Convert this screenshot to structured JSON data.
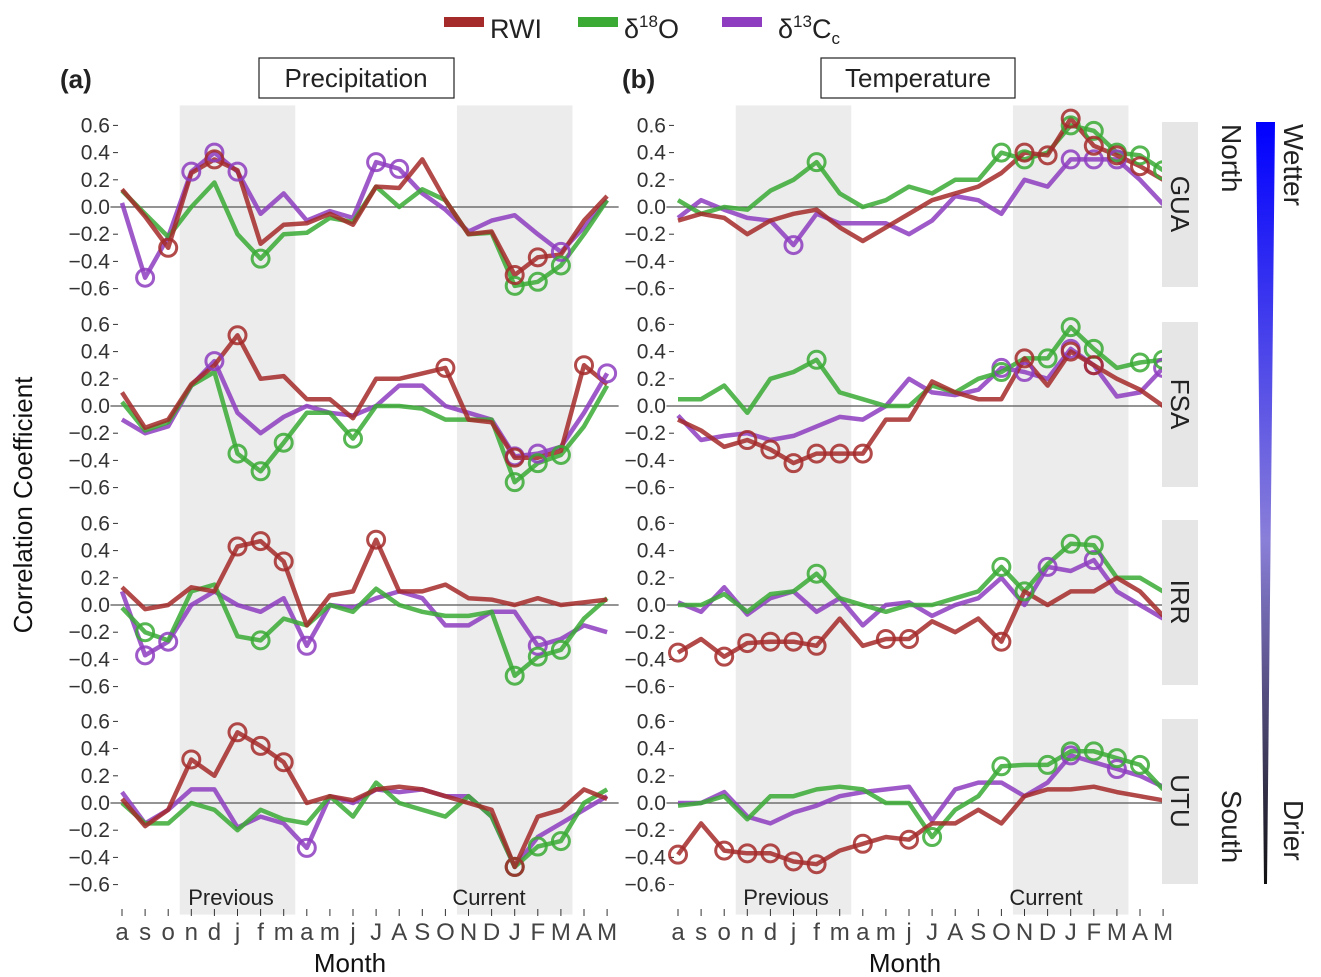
{
  "colors": {
    "RWI": "#a52a2a",
    "d18O": "#3aaa35",
    "d13C": "#8e3dc0",
    "north": "#1a1adb",
    "south": "#b5462a",
    "shade": "#ececec",
    "strip": "#e6e6e6"
  },
  "legend": {
    "rwi": "RWI",
    "d18o_base": "δ",
    "d18o_sup": "18",
    "d18o_tail": "O",
    "d13c_base": "δ",
    "d13c_sup": "13",
    "d13c_tail": "C",
    "d13c_sub": "c"
  },
  "panels": {
    "a_letter": "(a)",
    "a_title": "Precipitation",
    "b_letter": "(b)",
    "b_title": "Temperature"
  },
  "axes": {
    "ylabel": "Correlation Coefficient",
    "xlabel": "Month",
    "yticks": [
      "0.6",
      "0.4",
      "0.2",
      "0.0",
      "−0.2",
      "−0.4",
      "−0.6"
    ]
  },
  "shading": {
    "previous": "Previous",
    "current": "Current"
  },
  "gradient": {
    "north": "North",
    "south": "South",
    "wetter": "Wetter",
    "drier": "Drier"
  },
  "chart_data": {
    "type": "line",
    "categories": [
      "a",
      "s",
      "o",
      "n",
      "d",
      "j",
      "f",
      "m",
      "a",
      "m",
      "j",
      "J",
      "A",
      "S",
      "O",
      "N",
      "D",
      "J",
      "F",
      "M",
      "A",
      "M"
    ],
    "ylim": [
      -0.6,
      0.6
    ],
    "yticks": [
      0.6,
      0.4,
      0.2,
      0.0,
      -0.2,
      -0.4,
      -0.6
    ],
    "shaded_ranges": [
      {
        "label": "Previous",
        "from": 3,
        "to": 7
      },
      {
        "label": "Current",
        "from": 15,
        "to": 19
      }
    ],
    "legend_placement": "top",
    "sites": [
      "GUA",
      "FSA",
      "IRR",
      "UTU"
    ],
    "facets": {
      "Precipitation": {
        "GUA": {
          "RWI": {
            "values": [
              0.13,
              -0.07,
              -0.3,
              0.25,
              0.35,
              0.27,
              -0.27,
              -0.13,
              -0.12,
              -0.05,
              -0.13,
              0.15,
              0.14,
              0.35,
              0.05,
              -0.2,
              -0.18,
              -0.5,
              -0.37,
              -0.35,
              -0.1,
              0.08
            ],
            "sig": [
              2,
              4,
              17,
              18
            ]
          },
          "d18O": {
            "values": [
              0.12,
              -0.05,
              -0.22,
              0.0,
              0.18,
              -0.2,
              -0.38,
              -0.2,
              -0.19,
              -0.08,
              -0.11,
              0.15,
              0.0,
              0.13,
              0.05,
              -0.2,
              -0.19,
              -0.58,
              -0.55,
              -0.43,
              -0.2,
              0.05
            ],
            "sig": [
              6,
              17,
              18,
              19
            ]
          },
          "d13C": {
            "values": [
              0.03,
              -0.52,
              -0.22,
              0.26,
              0.4,
              0.26,
              -0.05,
              0.1,
              -0.1,
              -0.03,
              -0.08,
              0.33,
              0.28,
              0.1,
              -0.02,
              -0.18,
              -0.1,
              -0.06,
              -0.2,
              -0.33,
              -0.15,
              0.05
            ],
            "sig": [
              1,
              3,
              4,
              5,
              11,
              12,
              19
            ]
          }
        },
        "FSA": {
          "RWI": {
            "values": [
              0.1,
              -0.16,
              -0.1,
              0.16,
              0.3,
              0.52,
              0.2,
              0.22,
              0.05,
              0.05,
              -0.09,
              0.2,
              0.2,
              0.24,
              0.28,
              -0.1,
              -0.12,
              -0.38,
              -0.38,
              -0.33,
              0.3,
              0.16
            ],
            "sig": [
              5,
              14,
              17,
              20
            ]
          },
          "d18O": {
            "values": [
              0.03,
              -0.18,
              -0.12,
              0.15,
              0.25,
              -0.35,
              -0.48,
              -0.27,
              -0.05,
              -0.05,
              -0.24,
              0.0,
              0.0,
              -0.02,
              -0.1,
              -0.1,
              -0.1,
              -0.56,
              -0.42,
              -0.36,
              -0.15,
              0.15
            ],
            "sig": [
              5,
              6,
              7,
              10,
              17,
              18,
              19
            ]
          },
          "d13C": {
            "values": [
              -0.1,
              -0.2,
              -0.15,
              0.15,
              0.33,
              -0.05,
              -0.2,
              -0.08,
              0.0,
              -0.05,
              -0.07,
              0.0,
              0.15,
              0.15,
              0.0,
              -0.05,
              -0.1,
              -0.37,
              -0.35,
              -0.3,
              -0.05,
              0.24
            ],
            "sig": [
              4,
              17,
              18,
              21
            ]
          }
        },
        "IRR": {
          "RWI": {
            "values": [
              0.13,
              -0.03,
              0.0,
              0.13,
              0.1,
              0.43,
              0.47,
              0.32,
              -0.15,
              0.07,
              0.1,
              0.48,
              0.1,
              0.1,
              0.15,
              0.05,
              0.04,
              0.0,
              0.05,
              0.0,
              0.02,
              0.04
            ],
            "sig": [
              5,
              6,
              7,
              11
            ]
          },
          "d18O": {
            "values": [
              -0.02,
              -0.2,
              -0.26,
              0.1,
              0.15,
              -0.23,
              -0.26,
              -0.1,
              -0.15,
              0.0,
              -0.05,
              0.12,
              0.0,
              -0.05,
              -0.08,
              -0.08,
              -0.05,
              -0.52,
              -0.38,
              -0.33,
              -0.1,
              0.05
            ],
            "sig": [
              1,
              6,
              17,
              18,
              19
            ]
          },
          "d13C": {
            "values": [
              0.1,
              -0.37,
              -0.27,
              0.0,
              0.1,
              0.0,
              -0.05,
              0.05,
              -0.3,
              0.0,
              -0.02,
              0.05,
              0.1,
              0.05,
              -0.15,
              -0.15,
              -0.05,
              -0.05,
              -0.3,
              -0.25,
              -0.15,
              -0.2
            ],
            "sig": [
              1,
              2,
              8,
              18
            ]
          }
        },
        "UTU": {
          "RWI": {
            "values": [
              0.03,
              -0.17,
              -0.05,
              0.32,
              0.2,
              0.52,
              0.42,
              0.3,
              0.0,
              0.05,
              0.02,
              0.1,
              0.12,
              0.1,
              0.05,
              0.0,
              -0.05,
              -0.47,
              -0.1,
              -0.05,
              0.1,
              0.03
            ],
            "sig": [
              3,
              5,
              6,
              7,
              17
            ]
          },
          "d18O": {
            "values": [
              0.0,
              -0.15,
              -0.15,
              0.0,
              -0.05,
              -0.2,
              -0.05,
              -0.12,
              -0.15,
              0.05,
              -0.1,
              0.15,
              0.0,
              -0.05,
              -0.1,
              0.05,
              -0.1,
              -0.47,
              -0.32,
              -0.28,
              0.0,
              0.1
            ],
            "sig": [
              17,
              18,
              19
            ]
          },
          "d13C": {
            "values": [
              0.08,
              -0.15,
              -0.05,
              0.1,
              0.1,
              -0.18,
              -0.1,
              -0.15,
              -0.33,
              0.05,
              0.0,
              0.1,
              0.08,
              0.1,
              0.05,
              0.05,
              -0.1,
              -0.47,
              -0.25,
              -0.15,
              -0.05,
              0.05
            ],
            "sig": [
              8,
              17
            ]
          }
        }
      },
      "Temperature": {
        "GUA": {
          "RWI": {
            "values": [
              -0.1,
              -0.05,
              -0.08,
              -0.2,
              -0.1,
              -0.05,
              -0.02,
              -0.15,
              -0.25,
              -0.15,
              -0.05,
              0.05,
              0.1,
              0.15,
              0.25,
              0.4,
              0.38,
              0.65,
              0.45,
              0.38,
              0.3,
              0.2
            ],
            "sig": [
              15,
              16,
              17,
              18,
              19,
              20
            ]
          },
          "d18O": {
            "values": [
              0.05,
              -0.05,
              0.0,
              -0.02,
              0.12,
              0.2,
              0.33,
              0.1,
              0.0,
              0.05,
              0.15,
              0.1,
              0.2,
              0.2,
              0.4,
              0.35,
              0.4,
              0.6,
              0.56,
              0.4,
              0.38,
              0.27
            ],
            "sig": [
              6,
              14,
              15,
              17,
              18,
              19,
              20,
              21
            ]
          },
          "d13C": {
            "values": [
              -0.08,
              0.05,
              -0.02,
              -0.08,
              -0.1,
              -0.28,
              -0.05,
              -0.12,
              -0.12,
              -0.12,
              -0.2,
              -0.1,
              0.08,
              0.05,
              -0.05,
              0.2,
              0.15,
              0.35,
              0.35,
              0.35,
              0.2,
              0.02
            ],
            "sig": [
              5,
              17,
              18,
              19
            ]
          }
        },
        "FSA": {
          "RWI": {
            "values": [
              -0.1,
              -0.18,
              -0.3,
              -0.25,
              -0.32,
              -0.42,
              -0.35,
              -0.35,
              -0.35,
              -0.1,
              -0.1,
              0.18,
              0.1,
              0.05,
              0.05,
              0.35,
              0.15,
              0.4,
              0.3,
              0.2,
              0.12,
              0.0
            ],
            "sig": [
              3,
              4,
              5,
              6,
              7,
              8,
              15,
              17,
              18
            ]
          },
          "d18O": {
            "values": [
              0.05,
              0.05,
              0.15,
              -0.05,
              0.2,
              0.25,
              0.34,
              0.1,
              0.05,
              0.0,
              0.0,
              0.15,
              0.1,
              0.2,
              0.25,
              0.35,
              0.35,
              0.58,
              0.42,
              0.28,
              0.32,
              0.34
            ],
            "sig": [
              6,
              14,
              16,
              17,
              18,
              20,
              21
            ]
          },
          "d13C": {
            "values": [
              -0.07,
              -0.25,
              -0.22,
              -0.2,
              -0.25,
              -0.22,
              -0.15,
              -0.08,
              -0.1,
              0.0,
              0.2,
              0.1,
              0.08,
              0.12,
              0.28,
              0.25,
              0.2,
              0.42,
              0.3,
              0.07,
              0.1,
              0.28
            ],
            "sig": [
              14,
              15,
              17,
              18,
              21
            ]
          }
        },
        "IRR": {
          "RWI": {
            "values": [
              -0.35,
              -0.25,
              -0.38,
              -0.28,
              -0.27,
              -0.27,
              -0.3,
              -0.1,
              -0.3,
              -0.25,
              -0.25,
              -0.12,
              -0.2,
              -0.1,
              -0.27,
              0.1,
              0.0,
              0.1,
              0.1,
              0.2,
              0.1,
              -0.08
            ],
            "sig": [
              0,
              2,
              3,
              4,
              5,
              6,
              9,
              10,
              14
            ]
          },
          "d18O": {
            "values": [
              0.0,
              0.0,
              0.08,
              -0.05,
              0.08,
              0.1,
              0.23,
              0.05,
              0.0,
              -0.05,
              0.0,
              0.0,
              0.05,
              0.1,
              0.28,
              0.1,
              0.3,
              0.45,
              0.44,
              0.2,
              0.2,
              0.1
            ],
            "sig": [
              6,
              14,
              15,
              17,
              18
            ]
          },
          "d13C": {
            "values": [
              0.02,
              -0.05,
              0.13,
              -0.07,
              0.05,
              0.1,
              -0.05,
              0.05,
              -0.15,
              0.0,
              0.02,
              -0.08,
              0.0,
              0.05,
              0.2,
              0.0,
              0.28,
              0.25,
              0.33,
              0.1,
              0.0,
              -0.1
            ],
            "sig": [
              16,
              18
            ]
          }
        },
        "UTU": {
          "RWI": {
            "values": [
              -0.38,
              -0.15,
              -0.35,
              -0.37,
              -0.37,
              -0.43,
              -0.45,
              -0.35,
              -0.3,
              -0.25,
              -0.27,
              -0.15,
              -0.15,
              -0.05,
              -0.15,
              0.05,
              0.1,
              0.1,
              0.12,
              0.08,
              0.05,
              0.02
            ],
            "sig": [
              0,
              2,
              3,
              4,
              5,
              6,
              8,
              10
            ]
          },
          "d18O": {
            "values": [
              -0.02,
              0.0,
              0.05,
              -0.12,
              0.05,
              0.05,
              0.1,
              0.12,
              0.1,
              0.0,
              0.0,
              -0.25,
              -0.05,
              0.05,
              0.27,
              0.28,
              0.28,
              0.38,
              0.38,
              0.33,
              0.28,
              0.1
            ],
            "sig": [
              11,
              14,
              16,
              17,
              18,
              19,
              20
            ]
          },
          "d13C": {
            "values": [
              0.0,
              0.0,
              0.08,
              -0.1,
              -0.15,
              -0.07,
              -0.02,
              0.05,
              0.08,
              0.1,
              0.12,
              -0.13,
              0.1,
              0.15,
              0.15,
              0.05,
              0.15,
              0.35,
              0.3,
              0.25,
              0.2,
              0.12
            ],
            "sig": [
              17,
              19
            ]
          }
        }
      }
    }
  }
}
